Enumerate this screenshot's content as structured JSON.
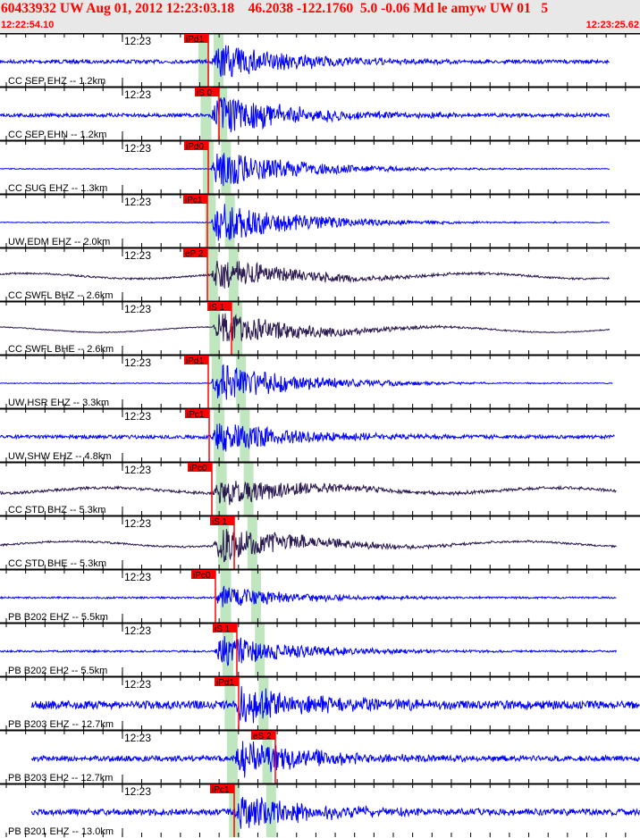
{
  "header": {
    "title": "60433932 UW Aug 01, 2012 12:23:03.18    46.2038 -122.1760  5.0 -0.06 Md le amyw UW 01   5",
    "start_time": "12:22:54.10",
    "end_time": "12:23:25.62"
  },
  "colors": {
    "pick": "#ff0000",
    "window": "#bfe6bf",
    "trace_short_period": "#0000ff",
    "trace_broadband": "#2a1850",
    "header_bg": "#e8e8e8"
  },
  "chart_data": {
    "type": "line",
    "title": "",
    "time_tick_label": "12:23",
    "channels": [
      {
        "station": "CC SEP EHZ -- 1.2km",
        "pick": "iPd1",
        "band": "short"
      },
      {
        "station": "CC SEP EHN -- 1.2km",
        "pick": "iS 0",
        "band": "short"
      },
      {
        "station": "CC SUG EHZ -- 1.3km",
        "pick": "iPd0",
        "band": "short"
      },
      {
        "station": "UW EDM EHZ -- 2.0km",
        "pick": "iPc1",
        "band": "short"
      },
      {
        "station": "CC SWFL BHZ -- 2.6km",
        "pick": "eP 2",
        "band": "broad"
      },
      {
        "station": "CC SWFL BHE -- 2.6km",
        "pick": "iS 1",
        "band": "broad"
      },
      {
        "station": "UW HSR EHZ -- 3.3km",
        "pick": "iPd1",
        "band": "short"
      },
      {
        "station": "UW SHW EHZ -- 4.8km",
        "pick": "iPc1",
        "band": "short"
      },
      {
        "station": "CC STD BHZ -- 5.3km",
        "pick": "iPc0",
        "band": "broad"
      },
      {
        "station": "CC STD BHE -- 5.3km",
        "pick": "iS 1",
        "band": "broad"
      },
      {
        "station": "PB B202 EHZ -- 5.5km",
        "pick": "iPc0",
        "band": "short"
      },
      {
        "station": "PB B202 EH2 -- 5.5km",
        "pick": "iS 1",
        "band": "short"
      },
      {
        "station": "PB B203 EHZ -- 12.7km",
        "pick": "iPd1",
        "band": "short"
      },
      {
        "station": "PB B203 EH2 -- 12.7km",
        "pick": "eS 2",
        "band": "short"
      },
      {
        "station": "PB B201 EHZ -- 13.0km",
        "pick": "iPc1",
        "band": "short"
      }
    ]
  }
}
